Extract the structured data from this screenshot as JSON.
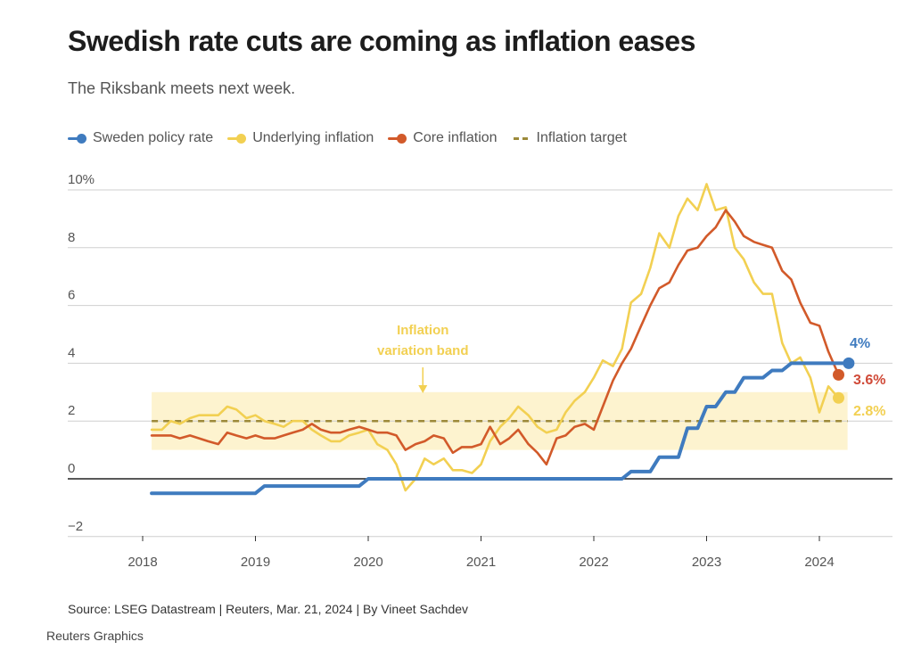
{
  "header": {
    "title": "Swedish rate cuts are coming as inflation eases",
    "subtitle": "The Riksbank meets next week."
  },
  "legend": [
    {
      "label": "Sweden policy rate",
      "color": "#3f7bbf",
      "style": "line-dot"
    },
    {
      "label": "Underlying inflation",
      "color": "#f2d052",
      "style": "line-dot"
    },
    {
      "label": "Core inflation",
      "color": "#d25a2a",
      "style": "line-dot"
    },
    {
      "label": "Inflation target",
      "color": "#9c8a3a",
      "style": "dashed"
    }
  ],
  "footer": {
    "source": "Source: LSEG Datastream | Reuters, Mar. 21, 2024 | By Vineet Sachdev",
    "brand": "Reuters Graphics"
  },
  "chart_data": {
    "type": "line",
    "title": "Swedish rate cuts are coming as inflation eases",
    "subtitle": "The Riksbank meets next week.",
    "xlabel": "",
    "ylabel": "",
    "xlim": [
      2017.55,
      2024.65
    ],
    "ylim": [
      -2,
      10
    ],
    "x_ticks": [
      2018,
      2019,
      2020,
      2021,
      2022,
      2023,
      2024
    ],
    "x_tick_labels": [
      "2018",
      "2019",
      "2020",
      "2021",
      "2022",
      "2023",
      "2024"
    ],
    "y_ticks": [
      -2,
      0,
      2,
      4,
      6,
      8,
      10
    ],
    "y_tick_labels": [
      "−2",
      "0",
      "2",
      "4",
      "6",
      "8",
      "10%"
    ],
    "grid": true,
    "legend_position": "top-left",
    "band": {
      "label": "Inflation variation band",
      "from_x": 2018.08,
      "to_x": 2024.25,
      "low": 1,
      "high": 3,
      "color": "#fdf3cf"
    },
    "band_annotation": {
      "text_line1": "Inflation",
      "text_line2": "variation band",
      "x": 2020.5,
      "color": "#f2d052"
    },
    "target": {
      "name": "Inflation target",
      "value": 2,
      "from_x": 2018.08,
      "to_x": 2024.25,
      "color": "#9c8a3a"
    },
    "series": [
      {
        "name": "Sweden policy rate",
        "color": "#3f7bbf",
        "end_label": "4%",
        "end_value": 4,
        "x": [
          2018.08,
          2019.0,
          2019.08,
          2019.92,
          2020.0,
          2022.25,
          2022.33,
          2022.5,
          2022.58,
          2022.75,
          2022.83,
          2022.92,
          2023.0,
          2023.08,
          2023.17,
          2023.25,
          2023.33,
          2023.5,
          2023.58,
          2023.67,
          2023.75,
          2024.26
        ],
        "values": [
          -0.5,
          -0.5,
          -0.25,
          -0.25,
          0.0,
          0.0,
          0.25,
          0.25,
          0.75,
          0.75,
          1.75,
          1.75,
          2.5,
          2.5,
          3.0,
          3.0,
          3.5,
          3.5,
          3.75,
          3.75,
          4.0,
          4.0
        ]
      },
      {
        "name": "Underlying inflation",
        "color": "#f2d052",
        "end_label": "2.8%",
        "end_value": 2.8,
        "x": [
          2018.08,
          2018.17,
          2018.25,
          2018.33,
          2018.42,
          2018.5,
          2018.58,
          2018.67,
          2018.75,
          2018.83,
          2018.92,
          2019.0,
          2019.08,
          2019.17,
          2019.25,
          2019.33,
          2019.42,
          2019.5,
          2019.58,
          2019.67,
          2019.75,
          2019.83,
          2019.92,
          2020.0,
          2020.08,
          2020.17,
          2020.25,
          2020.33,
          2020.42,
          2020.5,
          2020.58,
          2020.67,
          2020.75,
          2020.83,
          2020.92,
          2021.0,
          2021.08,
          2021.17,
          2021.25,
          2021.33,
          2021.42,
          2021.5,
          2021.58,
          2021.67,
          2021.75,
          2021.83,
          2021.92,
          2022.0,
          2022.08,
          2022.17,
          2022.25,
          2022.33,
          2022.42,
          2022.5,
          2022.58,
          2022.67,
          2022.75,
          2022.83,
          2022.92,
          2023.0,
          2023.08,
          2023.17,
          2023.25,
          2023.33,
          2023.42,
          2023.5,
          2023.58,
          2023.67,
          2023.75,
          2023.83,
          2023.92,
          2024.0,
          2024.08,
          2024.17
        ],
        "values": [
          1.7,
          1.7,
          2.0,
          1.9,
          2.1,
          2.2,
          2.2,
          2.2,
          2.5,
          2.4,
          2.1,
          2.2,
          2.0,
          1.9,
          1.8,
          2.0,
          2.0,
          1.7,
          1.5,
          1.3,
          1.3,
          1.5,
          1.6,
          1.7,
          1.2,
          1.0,
          0.5,
          -0.4,
          0.0,
          0.7,
          0.5,
          0.7,
          0.3,
          0.3,
          0.2,
          0.5,
          1.3,
          1.8,
          2.1,
          2.5,
          2.2,
          1.8,
          1.6,
          1.7,
          2.3,
          2.7,
          3.0,
          3.5,
          4.1,
          3.9,
          4.5,
          6.1,
          6.4,
          7.3,
          8.5,
          8.0,
          9.1,
          9.7,
          9.3,
          10.2,
          9.3,
          9.4,
          8.0,
          7.6,
          6.8,
          6.4,
          6.4,
          4.7,
          4.0,
          4.2,
          3.5,
          2.3,
          3.2,
          2.8
        ]
      },
      {
        "name": "Core inflation",
        "color": "#d25a2a",
        "end_label": "3.6%",
        "end_value": 3.6,
        "x": [
          2018.08,
          2018.17,
          2018.25,
          2018.33,
          2018.42,
          2018.5,
          2018.58,
          2018.67,
          2018.75,
          2018.83,
          2018.92,
          2019.0,
          2019.08,
          2019.17,
          2019.25,
          2019.33,
          2019.42,
          2019.5,
          2019.58,
          2019.67,
          2019.75,
          2019.83,
          2019.92,
          2020.0,
          2020.08,
          2020.17,
          2020.25,
          2020.33,
          2020.42,
          2020.5,
          2020.58,
          2020.67,
          2020.75,
          2020.83,
          2020.92,
          2021.0,
          2021.08,
          2021.17,
          2021.25,
          2021.33,
          2021.42,
          2021.5,
          2021.58,
          2021.67,
          2021.75,
          2021.83,
          2021.92,
          2022.0,
          2022.08,
          2022.17,
          2022.25,
          2022.33,
          2022.42,
          2022.5,
          2022.58,
          2022.67,
          2022.75,
          2022.83,
          2022.92,
          2023.0,
          2023.08,
          2023.17,
          2023.25,
          2023.33,
          2023.42,
          2023.5,
          2023.58,
          2023.67,
          2023.75,
          2023.83,
          2023.92,
          2024.0,
          2024.08,
          2024.17
        ],
        "values": [
          1.5,
          1.5,
          1.5,
          1.4,
          1.5,
          1.4,
          1.3,
          1.2,
          1.6,
          1.5,
          1.4,
          1.5,
          1.4,
          1.4,
          1.5,
          1.6,
          1.7,
          1.9,
          1.7,
          1.6,
          1.6,
          1.7,
          1.8,
          1.7,
          1.6,
          1.6,
          1.5,
          1.0,
          1.2,
          1.3,
          1.5,
          1.4,
          0.9,
          1.1,
          1.1,
          1.2,
          1.8,
          1.2,
          1.4,
          1.7,
          1.2,
          0.9,
          0.5,
          1.4,
          1.5,
          1.8,
          1.9,
          1.7,
          2.5,
          3.4,
          4.0,
          4.5,
          5.3,
          6.0,
          6.6,
          6.8,
          7.4,
          7.9,
          8.0,
          8.4,
          8.7,
          9.3,
          8.9,
          8.4,
          8.2,
          8.1,
          8.0,
          7.2,
          6.9,
          6.1,
          5.4,
          5.3,
          4.4,
          3.6
        ]
      }
    ],
    "end_labels": [
      {
        "series": "Sweden policy rate",
        "text": "4%",
        "color": "#3f7bbf"
      },
      {
        "series": "Core inflation",
        "text": "3.6%",
        "color": "#d04a38"
      },
      {
        "series": "Underlying inflation",
        "text": "2.8%",
        "color": "#f2d052"
      }
    ]
  }
}
